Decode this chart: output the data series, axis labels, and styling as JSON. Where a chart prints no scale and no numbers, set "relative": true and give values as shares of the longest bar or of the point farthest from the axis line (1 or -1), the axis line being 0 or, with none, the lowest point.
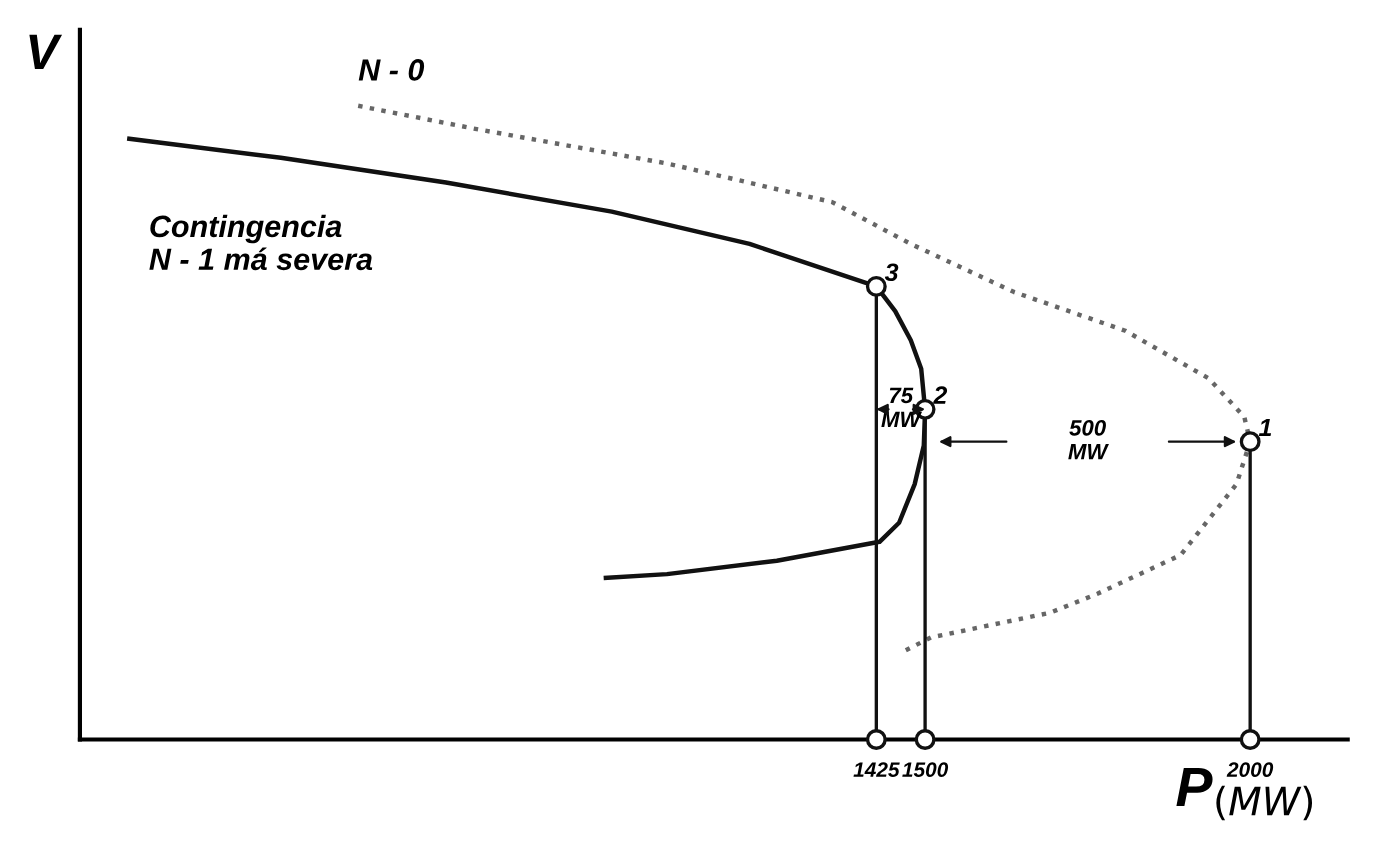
{
  "chart_data": {
    "type": "line",
    "relative": true,
    "xlabel": "P$_{(MW)}$",
    "ylabel": "V",
    "xlim": [
      200,
      2150
    ],
    "grid": false,
    "legend": false,
    "xticks": [
      1425,
      1500,
      2000
    ],
    "series": [
      {
        "name": "Contingencia\nN - 1 má severa",
        "color": "#111111",
        "line_style": "solid",
        "marker": "none",
        "x": [
          276,
          509,
          763,
          1018,
          1230,
          1425,
          1454,
          1478,
          1494,
          1500,
          1498,
          1484,
          1460,
          1430,
          1272,
          1103,
          1009
        ],
        "values": [
          0.948,
          0.918,
          0.879,
          0.833,
          0.782,
          0.715,
          0.676,
          0.63,
          0.585,
          0.521,
          0.464,
          0.403,
          0.342,
          0.312,
          0.282,
          0.261,
          0.255
        ]
      },
      {
        "name": "N - 0",
        "color": "#666666",
        "line_style": "dotted",
        "marker": "none",
        "x": [
          628,
          806,
          1103,
          1357,
          1478,
          1637,
          1808,
          1936,
          1991,
          2000,
          1979,
          1893,
          1765,
          1692,
          1509,
          1461
        ],
        "values": [
          1.0,
          0.964,
          0.909,
          0.848,
          0.782,
          0.706,
          0.645,
          0.57,
          0.509,
          0.47,
          0.403,
          0.291,
          0.23,
          0.2,
          0.161,
          0.136
        ]
      },
      {
        "type": "scatter",
        "color": "#111111",
        "marker": "circle",
        "x": [
          1425,
          1500,
          2000,
          1425,
          1500,
          2000
        ],
        "values": [
          0.715,
          0.521,
          0.47,
          0,
          0,
          0
        ]
      }
    ],
    "ref_lines": [
      {
        "axis": "x",
        "value": 1425,
        "color": "#111111"
      },
      {
        "axis": "x",
        "value": 1500,
        "color": "#111111"
      },
      {
        "axis": "x",
        "value": 2000,
        "color": "#111111"
      }
    ],
    "annotations": [
      {
        "text": "3",
        "x": 1425,
        "y": 0.715
      },
      {
        "text": "2",
        "x": 1500,
        "y": 0.521
      },
      {
        "text": "1",
        "x": 2000,
        "y": 0.47
      },
      "75\nMW",
      "500\nMW"
    ]
  }
}
